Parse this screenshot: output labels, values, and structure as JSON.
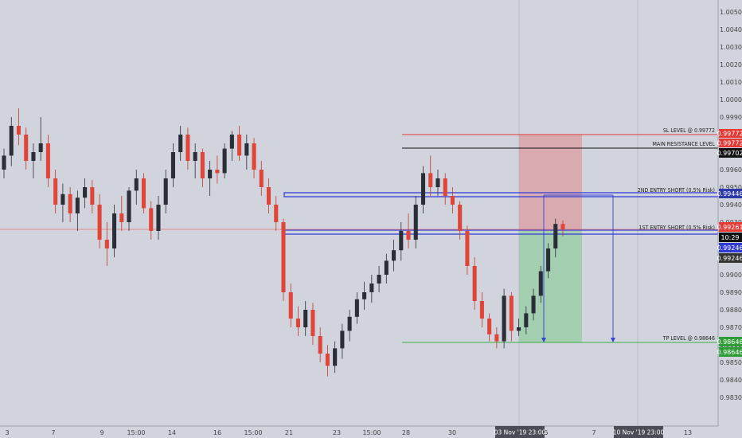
{
  "chart_data": {
    "type": "candlestick",
    "instrument_note": "",
    "y_range": [
      0.9825,
      1.0055
    ],
    "grid": false,
    "y_ticks": [
      "1.00500",
      "1.00400",
      "1.00300",
      "1.00200",
      "1.00100",
      "1.00000",
      "0.99900",
      "0.99800",
      "0.99700",
      "0.99600",
      "0.99500",
      "0.99400",
      "0.99300",
      "0.99200",
      "0.99100",
      "0.99000",
      "0.98900",
      "0.98800",
      "0.98700",
      "0.98600",
      "0.98500",
      "0.98400",
      "0.98300"
    ],
    "x_labels": [
      "3",
      "7",
      "9",
      "15:00",
      "14",
      "16",
      "15:00",
      "21",
      "23",
      "15:00",
      "28",
      "30",
      "5",
      "7",
      "13"
    ],
    "date_tags": [
      "03 Nov '19  23:00",
      "10 Nov '19  23:00"
    ],
    "levels": {
      "sl": {
        "label": "SL LEVEL @ 0.99772",
        "value": 0.99772,
        "tag": "0.99772",
        "color": "#e53935"
      },
      "sl2": {
        "value": 0.99772,
        "tag": "0.99772",
        "color": "#e53935"
      },
      "resistance": {
        "label": "MAIN RESISTANCE LEVEL",
        "value": 0.99702,
        "tag": "0.99702",
        "color": "#111111"
      },
      "entry2": {
        "label": "2ND ENTRY SHORT (0.5% Risk)",
        "value": 0.99446,
        "tag": "0.99446",
        "color": "#2e3aa8"
      },
      "entry1": {
        "label": "1ST ENTRY SHORT (0.5% Risk)",
        "value": 0.99261,
        "tag": "0.99261",
        "color": "#e53935"
      },
      "countdown": {
        "tag": "10:29",
        "color": "#111111"
      },
      "blue_line": {
        "value": 0.99246,
        "tag": "0.99246",
        "color": "#2e3ad0"
      },
      "gray_tag": {
        "value": 0.99246,
        "tag": "0.99246",
        "color": "#333333"
      },
      "tp": {
        "label": "TP LEVEL @ 0.98646",
        "value": 0.98646,
        "tag": "0.98646",
        "color": "#2e9d37"
      },
      "tp2": {
        "value": 0.98646,
        "tag": "0.98646",
        "color": "#2e9d37"
      }
    },
    "candles": [
      [
        0.996,
        0.9972,
        0.9955,
        0.9968
      ],
      [
        0.9968,
        0.999,
        0.9962,
        0.9985
      ],
      [
        0.9985,
        0.9995,
        0.9974,
        0.998
      ],
      [
        0.998,
        0.9984,
        0.996,
        0.9965
      ],
      [
        0.9965,
        0.9975,
        0.9955,
        0.997
      ],
      [
        0.997,
        0.999,
        0.9965,
        0.9975
      ],
      [
        0.9975,
        0.998,
        0.995,
        0.9955
      ],
      [
        0.9955,
        0.996,
        0.9935,
        0.994
      ],
      [
        0.994,
        0.9952,
        0.993,
        0.9946
      ],
      [
        0.9946,
        0.995,
        0.993,
        0.9935
      ],
      [
        0.9935,
        0.9948,
        0.9925,
        0.9944
      ],
      [
        0.9944,
        0.9955,
        0.9938,
        0.995
      ],
      [
        0.995,
        0.9954,
        0.9935,
        0.994
      ],
      [
        0.994,
        0.9946,
        0.9915,
        0.992
      ],
      [
        0.992,
        0.993,
        0.9905,
        0.9915
      ],
      [
        0.9915,
        0.994,
        0.991,
        0.9935
      ],
      [
        0.9935,
        0.9945,
        0.9925,
        0.993
      ],
      [
        0.993,
        0.995,
        0.9925,
        0.9948
      ],
      [
        0.9948,
        0.996,
        0.994,
        0.9955
      ],
      [
        0.9955,
        0.9958,
        0.9935,
        0.9938
      ],
      [
        0.9938,
        0.9942,
        0.992,
        0.9925
      ],
      [
        0.9925,
        0.9945,
        0.992,
        0.994
      ],
      [
        0.994,
        0.996,
        0.9935,
        0.9955
      ],
      [
        0.9955,
        0.9975,
        0.995,
        0.997
      ],
      [
        0.997,
        0.9985,
        0.9965,
        0.998
      ],
      [
        0.998,
        0.9984,
        0.996,
        0.9965
      ],
      [
        0.9965,
        0.9975,
        0.9955,
        0.997
      ],
      [
        0.997,
        0.9972,
        0.995,
        0.9955
      ],
      [
        0.9955,
        0.9965,
        0.9945,
        0.996
      ],
      [
        0.996,
        0.9968,
        0.9952,
        0.9958
      ],
      [
        0.9958,
        0.9975,
        0.9955,
        0.9972
      ],
      [
        0.9972,
        0.9982,
        0.9965,
        0.998
      ],
      [
        0.998,
        0.9985,
        0.9965,
        0.9968
      ],
      [
        0.9968,
        0.998,
        0.996,
        0.9975
      ],
      [
        0.9975,
        0.9978,
        0.9955,
        0.996
      ],
      [
        0.996,
        0.9965,
        0.9945,
        0.995
      ],
      [
        0.995,
        0.9955,
        0.9935,
        0.994
      ],
      [
        0.994,
        0.9945,
        0.9925,
        0.993
      ],
      [
        0.993,
        0.9932,
        0.9885,
        0.989
      ],
      [
        0.989,
        0.9895,
        0.987,
        0.9875
      ],
      [
        0.9875,
        0.9882,
        0.9865,
        0.987
      ],
      [
        0.987,
        0.9885,
        0.9865,
        0.988
      ],
      [
        0.988,
        0.9884,
        0.986,
        0.9865
      ],
      [
        0.9865,
        0.987,
        0.985,
        0.9855
      ],
      [
        0.9855,
        0.986,
        0.9842,
        0.9848
      ],
      [
        0.9848,
        0.9862,
        0.9844,
        0.9858
      ],
      [
        0.9858,
        0.9872,
        0.9852,
        0.9868
      ],
      [
        0.9868,
        0.988,
        0.9862,
        0.9876
      ],
      [
        0.9876,
        0.989,
        0.9872,
        0.9886
      ],
      [
        0.9886,
        0.9896,
        0.988,
        0.989
      ],
      [
        0.989,
        0.99,
        0.9884,
        0.9895
      ],
      [
        0.9895,
        0.9905,
        0.989,
        0.99
      ],
      [
        0.99,
        0.9912,
        0.9895,
        0.9908
      ],
      [
        0.9908,
        0.992,
        0.9902,
        0.9914
      ],
      [
        0.9914,
        0.993,
        0.9908,
        0.9925
      ],
      [
        0.9925,
        0.9935,
        0.9915,
        0.992
      ],
      [
        0.992,
        0.9945,
        0.9915,
        0.994
      ],
      [
        0.994,
        0.9962,
        0.9935,
        0.9958
      ],
      [
        0.9958,
        0.9968,
        0.9945,
        0.995
      ],
      [
        0.995,
        0.996,
        0.9945,
        0.9955
      ],
      [
        0.9955,
        0.9958,
        0.994,
        0.9945
      ],
      [
        0.9945,
        0.995,
        0.9935,
        0.994
      ],
      [
        0.994,
        0.9942,
        0.992,
        0.9925
      ],
      [
        0.9925,
        0.9928,
        0.99,
        0.9905
      ],
      [
        0.9905,
        0.991,
        0.988,
        0.9885
      ],
      [
        0.9885,
        0.989,
        0.987,
        0.9875
      ],
      [
        0.9875,
        0.9878,
        0.9862,
        0.9866
      ],
      [
        0.9866,
        0.987,
        0.9858,
        0.9862
      ],
      [
        0.9862,
        0.9892,
        0.9858,
        0.9888
      ],
      [
        0.9888,
        0.989,
        0.9862,
        0.9868
      ],
      [
        0.9868,
        0.9875,
        0.9865,
        0.987
      ],
      [
        0.987,
        0.9882,
        0.9866,
        0.9878
      ],
      [
        0.9878,
        0.9892,
        0.9874,
        0.9888
      ],
      [
        0.9888,
        0.9905,
        0.9884,
        0.9902
      ],
      [
        0.9902,
        0.9918,
        0.9898,
        0.9915
      ],
      [
        0.9915,
        0.9932,
        0.991,
        0.9929
      ],
      [
        0.9929,
        0.9931,
        0.9922,
        0.9926
      ]
    ]
  }
}
